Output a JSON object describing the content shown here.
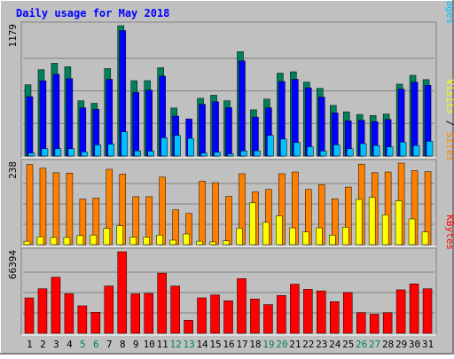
{
  "chart_data": {
    "type": "bar",
    "title": "Daily usage for May 2018",
    "categories": [
      "1",
      "2",
      "3",
      "4",
      "5",
      "6",
      "7",
      "8",
      "9",
      "10",
      "11",
      "12",
      "13",
      "14",
      "15",
      "16",
      "17",
      "18",
      "19",
      "20",
      "21",
      "22",
      "23",
      "24",
      "25",
      "26",
      "27",
      "28",
      "29",
      "30",
      "31"
    ],
    "weekend_days": [
      "5",
      "6",
      "12",
      "13",
      "19",
      "20",
      "26",
      "27"
    ],
    "panels": [
      {
        "id": "top",
        "max_label": "1179",
        "ymax": 1179,
        "right_labels": [
          {
            "text": "Hits",
            "color": "#00805c"
          },
          {
            "text": " / ",
            "color": "#000000"
          },
          {
            "text": "Files",
            "color": "#0000ff"
          },
          {
            "text": " / ",
            "color": "#000000"
          },
          {
            "text": "Pages",
            "color": "#00c0ff"
          }
        ],
        "series": [
          {
            "name": "Hits",
            "color": "#00805c",
            "values": [
              645,
              781,
              839,
              808,
              500,
              477,
              791,
              1179,
              682,
              682,
              799,
              434,
              0,
              522,
              550,
              500,
              944,
              418,
              515,
              750,
              762,
              669,
              612,
              458,
              400,
              376,
              366,
              380,
              650,
              730,
              691
            ]
          },
          {
            "name": "Files",
            "color": "#0000ff",
            "values": [
              537,
              681,
              739,
              699,
              436,
              423,
              694,
              1135,
              576,
              597,
              723,
              361,
              336,
              468,
              491,
              438,
              860,
              352,
              436,
              674,
              694,
              617,
              533,
              390,
              318,
              323,
              311,
              331,
              605,
              668,
              640
            ]
          },
          {
            "name": "Pages",
            "color": "#00c0ff",
            "values": [
              27,
              66,
              66,
              66,
              37,
              101,
              107,
              220,
              47,
              44,
              165,
              187,
              160,
              27,
              34,
              19,
              46,
              47,
              187,
              153,
              122,
              84,
              45,
              101,
              66,
              112,
              95,
              83,
              125,
              95,
              133
            ]
          }
        ]
      },
      {
        "id": "middle",
        "max_label": "238",
        "ymax": 238,
        "right_labels": [
          {
            "text": "Visits",
            "color": "#ffff00"
          },
          {
            "text": " / ",
            "color": "#000000"
          },
          {
            "text": "Sites",
            "color": "#ff8000"
          }
        ],
        "series": [
          {
            "name": "Sites",
            "color": "#ff8000",
            "values": [
              234,
              223,
              210,
              209,
              133,
              136,
              220,
              206,
              140,
              140,
              197,
              102,
              91,
              185,
              181,
              141,
              207,
              154,
              161,
              207,
              212,
              161,
              175,
              134,
              168,
              235,
              210,
              212,
              238,
              216,
              213
            ]
          },
          {
            "name": "Visits",
            "color": "#ffff00",
            "values": [
              10,
              23,
              21,
              21,
              27,
              28,
              47,
              55,
              22,
              22,
              28,
              13,
              31,
              10,
              8,
              11,
              48,
              122,
              65,
              84,
              49,
              37,
              49,
              28,
              51,
              132,
              138,
              87,
              128,
              75,
              37
            ]
          }
        ]
      },
      {
        "id": "bottom",
        "max_label": "66394",
        "ymax": 66394,
        "right_labels": [
          {
            "text": "KBytes",
            "color": "#ff0000"
          }
        ],
        "series": [
          {
            "name": "KBytes",
            "color": "#ff0000",
            "values": [
              28860,
              36260,
              45680,
              32220,
              22390,
              17150,
              38500,
              66394,
              32150,
              32480,
              49000,
              38500,
              10640,
              28880,
              31210,
              26480,
              44510,
              27940,
              23380,
              30760,
              40000,
              35800,
              34530,
              25730,
              33230,
              16890,
              15540,
              16840,
              35400,
              40250,
              36250
            ]
          }
        ]
      }
    ],
    "colors": {
      "background": "#c0c0c0",
      "frame_light": "#ffffff",
      "frame_dark": "#808080",
      "title": "#0000ff",
      "axis_text": "#000000",
      "weekend_text": "#00805c",
      "grid": "#808080"
    }
  }
}
